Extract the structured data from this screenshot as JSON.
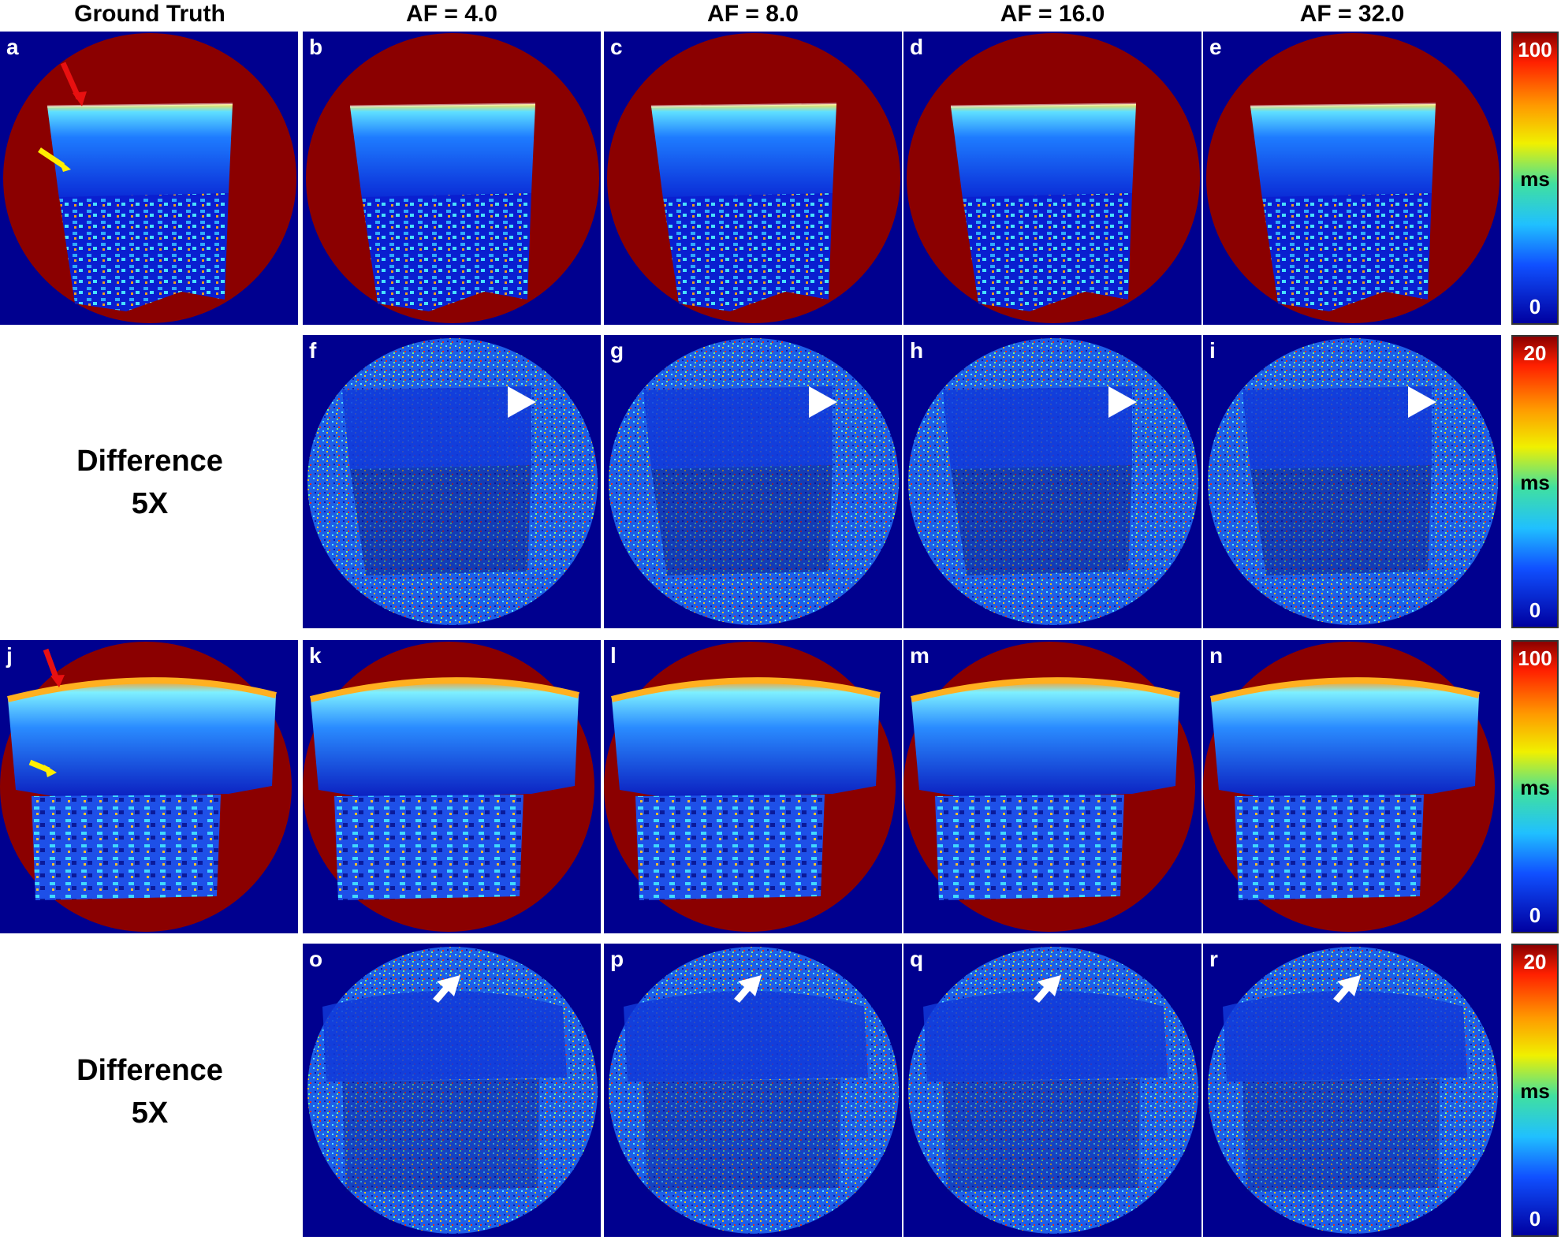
{
  "columns": [
    "Ground Truth",
    "AF = 4.0",
    "AF = 8.0",
    "AF = 16.0",
    "AF = 32.0"
  ],
  "row_labels": {
    "difference_top": [
      "Difference",
      "5X"
    ],
    "difference_bottom": [
      "Difference",
      "5X"
    ]
  },
  "panels": {
    "a": "a",
    "b": "b",
    "c": "c",
    "d": "d",
    "e": "e",
    "f": "f",
    "g": "g",
    "h": "h",
    "i": "i",
    "j": "j",
    "k": "k",
    "l": "l",
    "m": "m",
    "n": "n",
    "o": "o",
    "p": "p",
    "q": "q",
    "r": "r"
  },
  "colorbars": [
    {
      "max": "100",
      "unit": "ms",
      "min": "0"
    },
    {
      "max": "20",
      "unit": "ms",
      "min": "0"
    },
    {
      "max": "100",
      "unit": "ms",
      "min": "0"
    },
    {
      "max": "20",
      "unit": "ms",
      "min": "0"
    }
  ],
  "colors": {
    "bg_dark_blue": "#00008f",
    "red_region": "#8b0000",
    "arrow_red": "#e81010",
    "arrow_yellow": "#ffee00",
    "marker_white": "#ffffff"
  }
}
